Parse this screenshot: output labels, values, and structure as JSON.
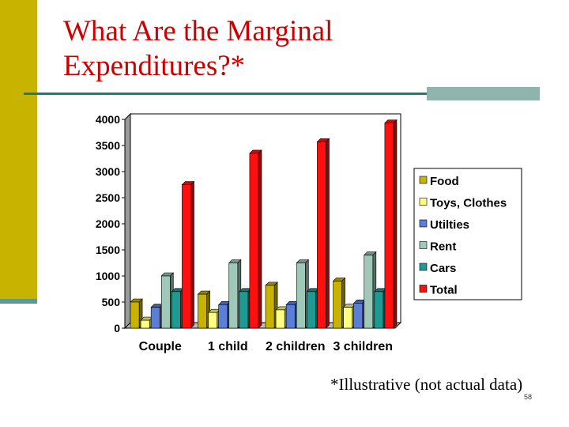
{
  "slide": {
    "title_line1": "What Are the Marginal",
    "title_line2": "Expenditures?*",
    "footnote": "*Illustrative (not actual data)",
    "page_number": "58"
  },
  "colors": {
    "accent_bar": "#c8b400",
    "title": "#cc0000",
    "rule": "#1e7a74"
  },
  "chart_data": {
    "type": "bar",
    "title": "",
    "xlabel": "",
    "ylabel": "",
    "categories": [
      "Couple",
      "1 child",
      "2 children",
      "3 children"
    ],
    "ylim": [
      0,
      4000
    ],
    "yticks": [
      0,
      500,
      1000,
      1500,
      2000,
      2500,
      3000,
      3500,
      4000
    ],
    "grid": false,
    "legend_position": "right",
    "series": [
      {
        "name": "Food",
        "color": "#c8b400",
        "values": [
          500,
          650,
          820,
          900
        ]
      },
      {
        "name": "Toys, Clothes",
        "color": "#ffff80",
        "values": [
          150,
          300,
          350,
          400
        ]
      },
      {
        "name": "Utilties",
        "color": "#5b7fd6",
        "values": [
          400,
          450,
          450,
          480
        ]
      },
      {
        "name": "Rent",
        "color": "#9fc8b8",
        "values": [
          1000,
          1250,
          1250,
          1400
        ]
      },
      {
        "name": "Cars",
        "color": "#1f9a92",
        "values": [
          700,
          700,
          700,
          700
        ]
      },
      {
        "name": "Total",
        "color": "#ff1010",
        "values": [
          2750,
          3350,
          3570,
          3930
        ]
      }
    ]
  }
}
